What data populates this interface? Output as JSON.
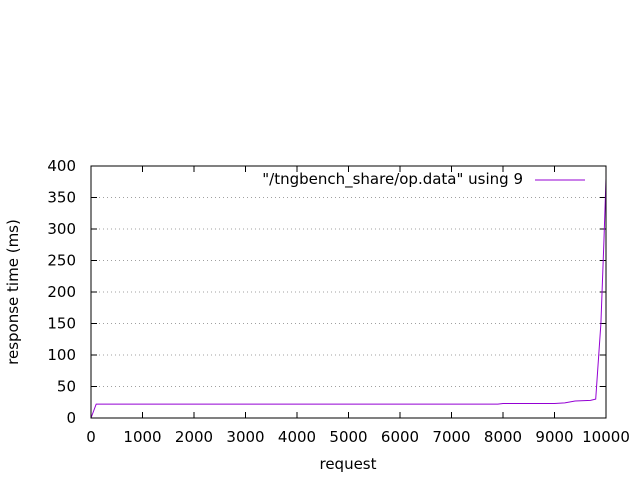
{
  "chart_data": {
    "type": "line",
    "title": "",
    "xlabel": "request",
    "ylabel": "response time (ms)",
    "xlim": [
      0,
      10000
    ],
    "ylim": [
      0,
      400
    ],
    "xticks": [
      0,
      1000,
      2000,
      3000,
      4000,
      5000,
      6000,
      7000,
      8000,
      9000,
      10000
    ],
    "yticks": [
      0,
      50,
      100,
      150,
      200,
      250,
      300,
      350,
      400
    ],
    "grid": "horizontal-dotted",
    "legend": {
      "placement": "top-right",
      "entries": [
        "\"/tngbench_share/op.data\" using 9"
      ]
    },
    "series": [
      {
        "name": "\"/tngbench_share/op.data\" using 9",
        "color": "#9400d3",
        "x": [
          0,
          100,
          1000,
          2000,
          3000,
          4000,
          5000,
          6000,
          7000,
          7900,
          8000,
          9000,
          9200,
          9400,
          9700,
          9800,
          9900,
          9960,
          10000
        ],
        "y": [
          0,
          22,
          22,
          22,
          22,
          22,
          22,
          22,
          22,
          22,
          23,
          23,
          24,
          27,
          28,
          30,
          150,
          280,
          380
        ]
      }
    ]
  }
}
